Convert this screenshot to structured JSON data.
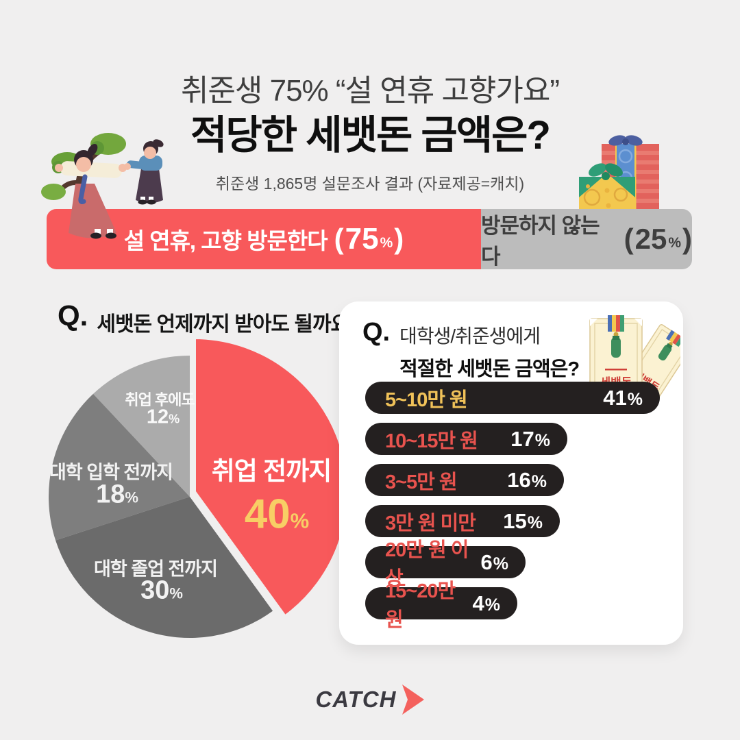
{
  "header": {
    "title_small": "취준생 75% “설 연휴 고향가요”",
    "title_big": "적당한 세뱃돈 금액은?",
    "subtitle": "취준생 1,865명 설문조사 결과 (자료제공=캐치)"
  },
  "punct": {
    "open": "(",
    "close": ")"
  },
  "pie_section": {
    "q": "Q.",
    "question": "세뱃돈 언제까지 받아도 될까요?"
  },
  "amount_section": {
    "q": "Q.",
    "question_line1": "대학생/취준생에게",
    "question_line2": "적절한 세뱃돈 금액은?",
    "envelope_text": "세뱃돈"
  },
  "footer": {
    "logo_text": "CATCH"
  },
  "colors": {
    "background": "#f0efef",
    "accent_red": "#f8595b",
    "split_bar_gray": "#bcbcbc",
    "pill_dark": "#242020",
    "pill_label_red": "#e8534e",
    "pill_label_gold": "#f0c259",
    "pie_value_yellow": "#f8ce65",
    "logo_dark": "#3b3a41",
    "logo_arrow_red": "#f4615d",
    "card_white": "#ffffff"
  },
  "chart_data": [
    {
      "type": "pie",
      "title": "Q. 세뱃돈 언제까지 받아도 될까요?",
      "labels": [
        "취업 전까지",
        "대학 졸업 전까지",
        "대학 입학 전까지",
        "취업 후에도"
      ],
      "values": [
        40,
        30,
        18,
        12
      ],
      "unit": "%",
      "colors": [
        "#f8595b",
        "#6b6b6b",
        "#7e7e7e",
        "#ababab"
      ],
      "start_angle": "top",
      "direction": "clockwise",
      "exploded_index": 0
    },
    {
      "type": "bar",
      "title": "Q. 대학생/취준생에게 적절한 세뱃돈 금액은?",
      "orientation": "horizontal",
      "categories": [
        "5~10만 원",
        "10~15만 원",
        "3~5만 원",
        "3만 원 미만",
        "20만 원 이상",
        "15~20만 원"
      ],
      "values": [
        41,
        17,
        16,
        15,
        6,
        4
      ],
      "unit": "%",
      "bar_color": "#242020",
      "legend_position": "none",
      "grid": false
    },
    {
      "type": "bar",
      "title": "설 연휴 고향 방문한다 / 방문하지 않는다",
      "orientation": "horizontal",
      "categories": [
        "설 연휴, 고향 방문한다",
        "방문하지 않는다"
      ],
      "values": [
        75,
        25
      ],
      "unit": "%",
      "colors": [
        "#f8595b",
        "#bcbcbc"
      ],
      "grid": false
    }
  ]
}
